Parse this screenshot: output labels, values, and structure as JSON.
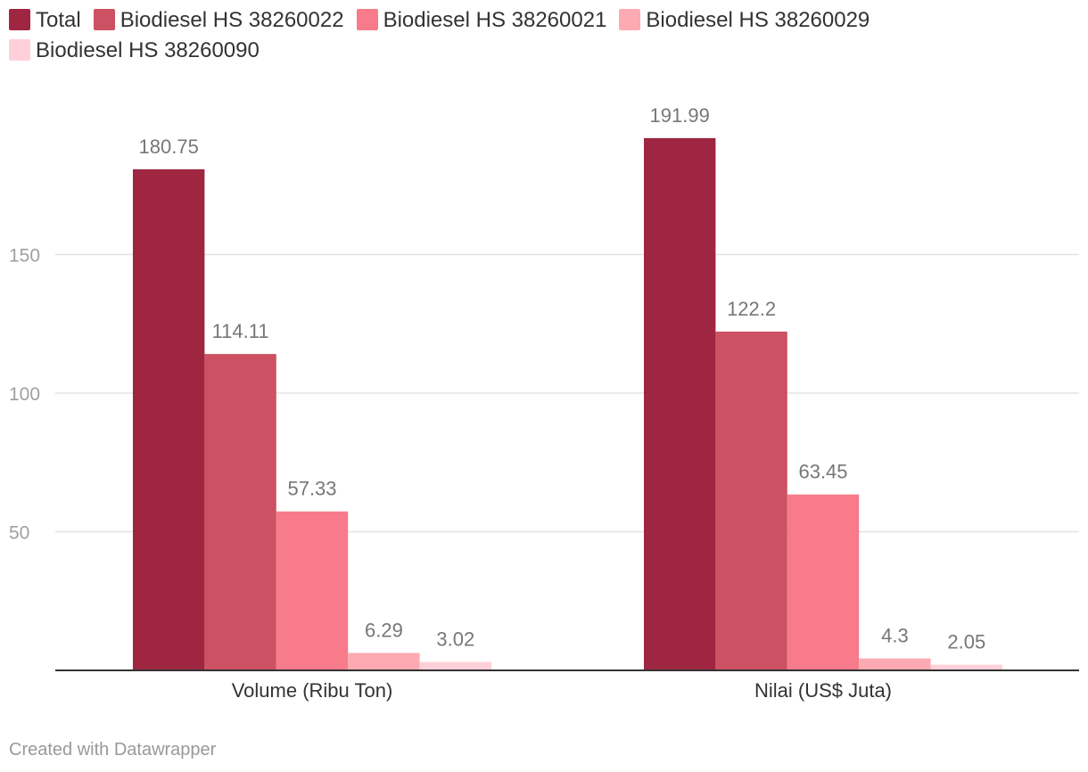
{
  "chart_data": {
    "type": "bar",
    "categories": [
      "Volume (Ribu Ton)",
      "Nilai (US$ Juta)"
    ],
    "series": [
      {
        "name": "Total",
        "values": [
          180.75,
          191.99
        ],
        "color": "#9e2641"
      },
      {
        "name": "Biodiesel HS 38260022",
        "values": [
          114.11,
          122.2
        ],
        "color": "#cc5263"
      },
      {
        "name": "Biodiesel HS 38260021",
        "values": [
          57.33,
          63.45
        ],
        "color": "#f77b8a"
      },
      {
        "name": "Biodiesel HS 38260029",
        "values": [
          6.29,
          4.3
        ],
        "color": "#fdaab3"
      },
      {
        "name": "Biodiesel HS 38260090",
        "values": [
          3.02,
          2.05
        ],
        "color": "#ffd0d9"
      }
    ],
    "value_labels": [
      [
        "180.75",
        "191.99"
      ],
      [
        "114.11",
        "122.2"
      ],
      [
        "57.33",
        "63.45"
      ],
      [
        "6.29",
        "4.3"
      ],
      [
        "3.02",
        "2.05"
      ]
    ],
    "y_ticks": [
      50,
      100,
      150
    ],
    "ylim": [
      0,
      200
    ],
    "grid": true,
    "legend_position": "top"
  },
  "footer": {
    "credit": "Created with Datawrapper"
  }
}
